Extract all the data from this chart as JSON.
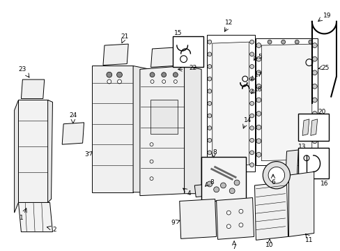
{
  "background_color": "#ffffff",
  "line_color": "#000000",
  "figsize": [
    4.89,
    3.6
  ],
  "dpi": 100,
  "label_fs": 6.5
}
